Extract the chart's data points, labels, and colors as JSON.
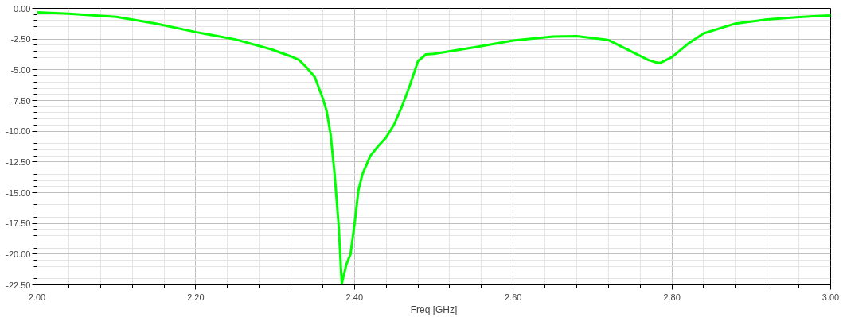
{
  "chart_data": {
    "type": "line",
    "xlabel": "Freq [GHz]",
    "x": [
      2.0,
      2.04,
      2.1,
      2.15,
      2.2,
      2.25,
      2.295,
      2.32,
      2.33,
      2.34,
      2.35,
      2.36,
      2.365,
      2.37,
      2.375,
      2.38,
      2.384,
      2.39,
      2.395,
      2.4,
      2.405,
      2.41,
      2.42,
      2.43,
      2.44,
      2.45,
      2.46,
      2.47,
      2.48,
      2.49,
      2.5,
      2.55,
      2.6,
      2.65,
      2.68,
      2.72,
      2.75,
      2.77,
      2.78,
      2.785,
      2.8,
      2.82,
      2.84,
      2.88,
      2.92,
      2.96,
      3.0
    ],
    "series": [
      {
        "color": "#00ff00",
        "values": [
          -0.32,
          -0.43,
          -0.69,
          -1.24,
          -1.93,
          -2.53,
          -3.33,
          -3.91,
          -4.19,
          -4.83,
          -5.59,
          -7.3,
          -8.38,
          -10.3,
          -13.5,
          -17.6,
          -22.4,
          -20.8,
          -20.0,
          -17.6,
          -14.8,
          -13.5,
          -12.0,
          -11.2,
          -10.5,
          -9.44,
          -7.95,
          -6.24,
          -4.3,
          -3.75,
          -3.7,
          -3.18,
          -2.62,
          -2.3,
          -2.26,
          -2.58,
          -3.55,
          -4.19,
          -4.4,
          -4.45,
          -3.97,
          -2.9,
          -2.04,
          -1.24,
          -0.9,
          -0.71,
          -0.58
        ]
      }
    ],
    "xlim": [
      2.0,
      3.0
    ],
    "ylim": [
      -22.5,
      0.0
    ],
    "xticks": [
      {
        "value": 2.0,
        "label": "2.00"
      },
      {
        "value": 2.2,
        "label": "2.20"
      },
      {
        "value": 2.4,
        "label": "2.40"
      },
      {
        "value": 2.6,
        "label": "2.60"
      },
      {
        "value": 2.8,
        "label": "2.80"
      },
      {
        "value": 3.0,
        "label": "3.00"
      }
    ],
    "yticks": [
      {
        "value": 0,
        "label": "0.00"
      },
      {
        "value": -2.5,
        "label": "-2.50"
      },
      {
        "value": -5,
        "label": "-5.00"
      },
      {
        "value": -7.5,
        "label": "-7.50"
      },
      {
        "value": -10,
        "label": "-10.00"
      },
      {
        "value": -12.5,
        "label": "-12.50"
      },
      {
        "value": -15,
        "label": "-15.00"
      },
      {
        "value": -17.5,
        "label": "-17.50"
      },
      {
        "value": -20,
        "label": "-20.00"
      },
      {
        "value": -22.5,
        "label": "-22.50"
      }
    ],
    "grid": true,
    "marker": "none",
    "line_style": "solid"
  }
}
